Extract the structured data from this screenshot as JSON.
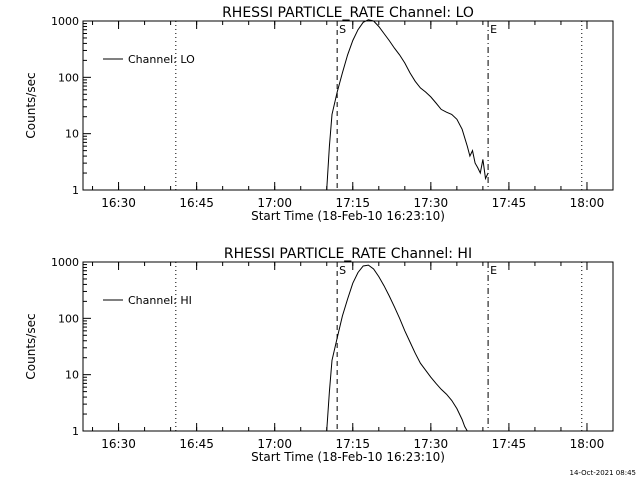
{
  "timestamp": "14-Oct-2021 08:45",
  "chart_data": [
    {
      "type": "line",
      "title": "RHESSI PARTICLE_RATE Channel: LO",
      "xlabel": "Start Time (18-Feb-10 16:23:10)",
      "ylabel": "Counts/sec",
      "yscale": "log",
      "xlim": [
        "16:23:10",
        "18:05:00"
      ],
      "ylim": [
        1,
        1000
      ],
      "x_ticks": [
        "16:30",
        "16:45",
        "17:00",
        "17:15",
        "17:30",
        "17:45",
        "18:00"
      ],
      "y_ticks": [
        "1",
        "10",
        "100",
        "1000"
      ],
      "legend": {
        "position": "top-left",
        "entries": [
          "Channel: LO"
        ]
      },
      "markers": [
        {
          "time": "16:41",
          "style": "dotted",
          "label": ""
        },
        {
          "time": "17:12",
          "style": "dashed",
          "label": "S"
        },
        {
          "time": "17:41",
          "style": "dash-dot",
          "label": "E"
        },
        {
          "time": "17:59",
          "style": "dotted",
          "label": ""
        }
      ],
      "series": [
        {
          "name": "Channel: LO",
          "x": [
            "17:10",
            "17:10:30",
            "17:11",
            "17:12",
            "17:13",
            "17:14",
            "17:15",
            "17:16",
            "17:17",
            "17:18",
            "17:19",
            "17:20",
            "17:21",
            "17:22",
            "17:23",
            "17:24",
            "17:25",
            "17:26",
            "17:27",
            "17:28",
            "17:29",
            "17:30",
            "17:31",
            "17:32",
            "17:33",
            "17:34",
            "17:35",
            "17:36",
            "17:37",
            "17:37:30",
            "17:38",
            "17:38:30",
            "17:39",
            "17:39:30",
            "17:40",
            "17:40:30",
            "17:41"
          ],
          "values": [
            1,
            6,
            22,
            55,
            120,
            250,
            450,
            700,
            950,
            1050,
            1000,
            800,
            600,
            450,
            330,
            250,
            180,
            120,
            85,
            65,
            55,
            45,
            35,
            27,
            24,
            22,
            18,
            12,
            6,
            4,
            5,
            3,
            2.5,
            2,
            3.5,
            1.6,
            2
          ]
        }
      ]
    },
    {
      "type": "line",
      "title": "RHESSI PARTICLE_RATE Channel: HI",
      "xlabel": "Start Time (18-Feb-10 16:23:10)",
      "ylabel": "Counts/sec",
      "yscale": "log",
      "xlim": [
        "16:23:10",
        "18:05:00"
      ],
      "ylim": [
        1,
        1000
      ],
      "x_ticks": [
        "16:30",
        "16:45",
        "17:00",
        "17:15",
        "17:30",
        "17:45",
        "18:00"
      ],
      "y_ticks": [
        "1",
        "10",
        "100",
        "1000"
      ],
      "legend": {
        "position": "top-left",
        "entries": [
          "Channel: HI"
        ]
      },
      "markers": [
        {
          "time": "16:41",
          "style": "dotted",
          "label": ""
        },
        {
          "time": "17:12",
          "style": "dashed",
          "label": "S"
        },
        {
          "time": "17:41",
          "style": "dash-dot",
          "label": "E"
        },
        {
          "time": "17:59",
          "style": "dotted",
          "label": ""
        }
      ],
      "series": [
        {
          "name": "Channel: HI",
          "x": [
            "17:10",
            "17:10:30",
            "17:11",
            "17:12",
            "17:13",
            "17:14",
            "17:15",
            "17:16",
            "17:17",
            "17:18",
            "17:19",
            "17:20",
            "17:21",
            "17:22",
            "17:23",
            "17:24",
            "17:25",
            "17:26",
            "17:27",
            "17:28",
            "17:29",
            "17:30",
            "17:31",
            "17:32",
            "17:33",
            "17:34",
            "17:35",
            "17:36",
            "17:36:30",
            "17:37"
          ],
          "values": [
            1,
            5,
            18,
            45,
            110,
            220,
            420,
            650,
            850,
            880,
            750,
            550,
            380,
            250,
            160,
            100,
            60,
            38,
            24,
            16,
            12,
            9,
            7,
            5.5,
            4.5,
            3.5,
            2.5,
            1.6,
            1.2,
            1
          ]
        }
      ]
    }
  ]
}
